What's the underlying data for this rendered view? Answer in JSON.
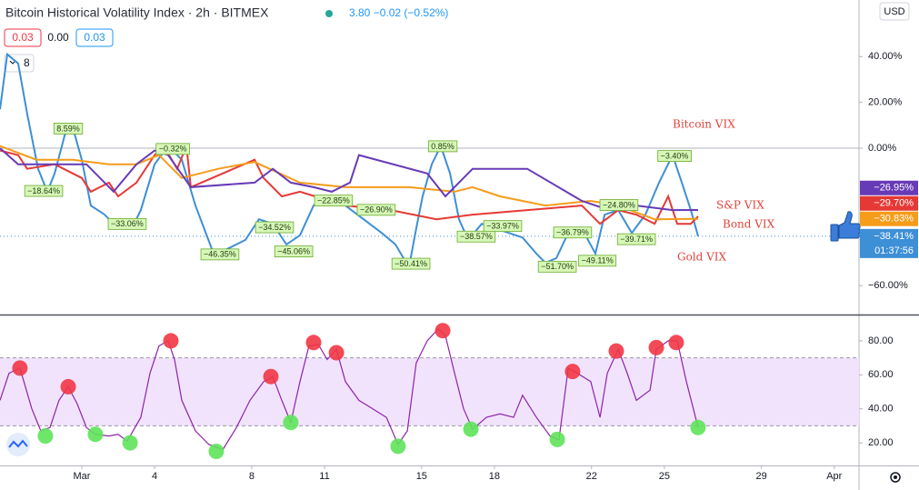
{
  "header": {
    "quote": "3.80 −0.02 (−0.52%)",
    "values": [
      "0.03",
      "0.00",
      "0.03"
    ],
    "collapsed": "8",
    "currency": "USD",
    "countdown": "01:37:56"
  },
  "chart_data": [
    {
      "type": "line",
      "title": "Bitcoin Historical Volatility Index · 2h · BITMEX",
      "xlim": [
        -3.37,
        32.02
      ],
      "ylim": [
        -72.2,
        64.7
      ],
      "baseline": 0,
      "grid": false,
      "yticks": [
        {
          "value": 40,
          "label": "40.00%"
        },
        {
          "value": 20,
          "label": "20.00%"
        },
        {
          "value": 0,
          "label": "0.00%"
        },
        {
          "value": -60,
          "label": "−60.00%"
        }
      ],
      "series": [
        {
          "name": "Bitcoin VIX",
          "color": "#3d8fd6",
          "x": [
            -3.37,
            -3.07,
            -2.62,
            -2.25,
            -1.8,
            -1.42,
            -1.12,
            -0.67,
            -0.37,
            0,
            0.37,
            0.94,
            1.5,
            2.06,
            2.43,
            3,
            3.56,
            4.12,
            4.68,
            5.43,
            5.99,
            6.74,
            7.3,
            7.87,
            8.43,
            8.99,
            9.55,
            10.11,
            10.86,
            11.61,
            12.36,
            12.92,
            13.48,
            13.78,
            14.04,
            14.42,
            14.79,
            15.17,
            15.54,
            15.92,
            16.48,
            17.04,
            17.6,
            18.16,
            18.73,
            19.1,
            19.55,
            20.04,
            20.6,
            21.16,
            21.54,
            22.1,
            22.66,
            23.22,
            23.78,
            24.34,
            24.72,
            25.09,
            25.39
          ],
          "values": [
            17,
            41,
            37,
            15,
            -9,
            -19,
            -11,
            7,
            9,
            -5,
            -25,
            -29,
            -35,
            -35,
            -27,
            -7,
            1,
            -5,
            -25,
            -46,
            -44,
            -40,
            -31,
            -33,
            -42,
            -38,
            -25,
            -21,
            -25,
            -31,
            -37,
            -42,
            -52,
            -35,
            -21,
            -7,
            1,
            -11,
            -31,
            -40,
            -33,
            -35,
            -37,
            -39,
            -46,
            -50,
            -48,
            -37,
            -35,
            -46,
            -29,
            -27,
            -37,
            -29,
            -15,
            -3,
            -15,
            -27,
            -38.41
          ],
          "last_value": {
            "value": -38.41,
            "label": "−38.41%"
          }
        },
        {
          "name": "S&P VIX",
          "color": "#e53935",
          "x": [
            -3.37,
            -2.62,
            -2.25,
            -1.12,
            0,
            0.37,
            1.12,
            1.5,
            2.25,
            3,
            3.37,
            3.93,
            4.31,
            4.49,
            7.12,
            7.49,
            8.24,
            8.99,
            10.86,
            12.73,
            14.61,
            16.1,
            18.35,
            20.6,
            21.35,
            22.1,
            22.85,
            23.6,
            24.16,
            24.53,
            25.09,
            25.39
          ],
          "values": [
            -1,
            -3,
            -9,
            -7,
            -13,
            -19,
            -15,
            -21,
            -15,
            -3,
            1,
            -9,
            1,
            -17,
            -5,
            -13,
            -21,
            -19,
            -25,
            -27,
            -31,
            -29,
            -27,
            -25,
            -33,
            -27,
            -29,
            -33,
            -21,
            -33,
            -33,
            -29.7
          ],
          "last_value": {
            "value": -29.7,
            "label": "−29.70%"
          }
        },
        {
          "name": "Bond VIX",
          "color": "#f59c1a",
          "x": [
            -3.37,
            -1.87,
            -0.37,
            1.12,
            2.25,
            3.18,
            4.12,
            5.62,
            7.12,
            8.99,
            10.86,
            13.48,
            15.36,
            16.1,
            17.23,
            19.1,
            20.97,
            22.1,
            23.6,
            25.39
          ],
          "values": [
            1,
            -5,
            -5,
            -7,
            -7,
            -3,
            -13,
            -9,
            -6,
            -15,
            -17,
            -17,
            -19,
            -17,
            -21,
            -25,
            -23,
            -25,
            -31,
            -30.83
          ],
          "last_value": {
            "value": -30.83,
            "label": "−30.83%"
          }
        },
        {
          "name": "Gold VIX",
          "color": "#673ab7",
          "x": [
            -3.37,
            -2.62,
            -1.12,
            0.19,
            1.31,
            2.25,
            3,
            3.56,
            4.49,
            7.12,
            7.87,
            8.61,
            9.55,
            10.3,
            11.05,
            11.42,
            14.23,
            14.98,
            16.1,
            18.35,
            20.6,
            21.72,
            22.85,
            24.34,
            25.39
          ],
          "values": [
            0,
            -7,
            -7,
            -7,
            -19,
            -7,
            -1,
            -3,
            -17,
            -15,
            -9,
            -15,
            -17,
            -19,
            -15,
            -3,
            -11,
            -21,
            -9,
            -9,
            -23,
            -27,
            -25,
            -27,
            -26.95
          ],
          "last_value": {
            "value": -26.95,
            "label": "−26.95%"
          }
        }
      ],
      "annotations": [
        {
          "label": "8.59%",
          "x": -0.56,
          "y": 8.59
        },
        {
          "label": "−18.64%",
          "x": -1.57,
          "y": -18.64
        },
        {
          "label": "−0.32%",
          "x": 3.75,
          "y": -0.32
        },
        {
          "label": "−33.06%",
          "x": 1.87,
          "y": -33.06
        },
        {
          "label": "−34.52%",
          "x": 7.94,
          "y": -34.52
        },
        {
          "label": "−46.35%",
          "x": 5.69,
          "y": -46.35
        },
        {
          "label": "−45.06%",
          "x": 8.73,
          "y": -45.06
        },
        {
          "label": "−22.85%",
          "x": 10.37,
          "y": -22.85
        },
        {
          "label": "−26.90%",
          "x": 12.13,
          "y": -26.9
        },
        {
          "label": "0.85%",
          "x": 14.87,
          "y": 0.85
        },
        {
          "label": "−50.41%",
          "x": 13.56,
          "y": -50.41
        },
        {
          "label": "−38.57%",
          "x": 16.25,
          "y": -38.57
        },
        {
          "label": "−33.97%",
          "x": 17.34,
          "y": -33.97
        },
        {
          "label": "−36.79%",
          "x": 20.22,
          "y": -36.79
        },
        {
          "label": "−51.70%",
          "x": 19.59,
          "y": -51.7
        },
        {
          "label": "−49.11%",
          "x": 21.24,
          "y": -49.11
        },
        {
          "label": "−24.80%",
          "x": 22.13,
          "y": -24.8
        },
        {
          "label": "−39.71%",
          "x": 22.85,
          "y": -39.71
        },
        {
          "label": "−3.40%",
          "x": 24.42,
          "y": -3.4
        }
      ]
    },
    {
      "type": "line",
      "xlim": [
        -3.37,
        32.02
      ],
      "ylim": [
        6.7,
        94.4
      ],
      "band": [
        30,
        70
      ],
      "grid": false,
      "yticks": [
        {
          "value": 80,
          "label": "80.00"
        },
        {
          "value": 60,
          "label": "60.00"
        },
        {
          "value": 40,
          "label": "40.00"
        },
        {
          "value": 20,
          "label": "20.00"
        }
      ],
      "xticks": [
        {
          "value": 0,
          "label": "Mar"
        },
        {
          "value": 3,
          "label": "4"
        },
        {
          "value": 7,
          "label": "8"
        },
        {
          "value": 10,
          "label": "11"
        },
        {
          "value": 14,
          "label": "15"
        },
        {
          "value": 17,
          "label": "18"
        },
        {
          "value": 21,
          "label": "22"
        },
        {
          "value": 24,
          "label": "25"
        },
        {
          "value": 28,
          "label": "29"
        },
        {
          "value": 31,
          "label": "Apr"
        }
      ],
      "series": [
        {
          "color": "#8e24aa",
          "x": [
            -3.37,
            -3,
            -2.55,
            -2.06,
            -1.69,
            -1.31,
            -0.94,
            -0.56,
            -0.19,
            0.19,
            0.56,
            1.12,
            1.5,
            1.87,
            2.43,
            2.81,
            3.18,
            3.56,
            3.82,
            4.12,
            4.68,
            5.24,
            5.81,
            6.37,
            6.93,
            7.49,
            7.87,
            8.24,
            8.61,
            8.99,
            9.36,
            9.74,
            10.11,
            10.49,
            10.86,
            11.42,
            11.99,
            12.55,
            13.03,
            13.41,
            13.78,
            14.23,
            14.68,
            14.98,
            15.36,
            15.73,
            16.1,
            16.67,
            17.23,
            17.79,
            18.16,
            18.73,
            19.29,
            19.66,
            20.04,
            20.41,
            20.97,
            21.35,
            21.65,
            22.1,
            22.47,
            22.85,
            23.41,
            23.67,
            24.16,
            24.53,
            24.91,
            25.39
          ],
          "values": [
            45,
            61,
            64,
            40,
            27,
            29,
            45,
            53,
            43,
            29,
            25,
            24,
            25,
            21,
            35,
            61,
            77,
            80,
            69,
            45,
            27,
            19,
            16,
            29,
            45,
            56,
            59,
            45,
            32,
            56,
            77,
            78,
            69,
            75,
            56,
            45,
            40,
            35,
            19,
            27,
            67,
            80,
            87,
            83,
            61,
            40,
            28,
            35,
            37,
            35,
            48,
            35,
            24,
            22,
            64,
            61,
            56,
            35,
            61,
            75,
            61,
            45,
            51,
            75,
            80,
            80,
            56,
            29
          ]
        }
      ],
      "markers": [
        {
          "color": "#f23645",
          "x": [
            -2.55,
            -0.56,
            3.67,
            7.79,
            9.55,
            10.49,
            14.87,
            20.22,
            22.02,
            23.67,
            24.49
          ],
          "values": [
            64,
            53,
            80,
            59,
            79,
            73,
            86,
            62,
            74,
            76,
            79
          ]
        },
        {
          "color": "#5ee35a",
          "x": [
            -1.5,
            0.56,
            1.99,
            5.54,
            8.61,
            13.03,
            16.03,
            19.59,
            25.39
          ],
          "values": [
            24,
            25,
            20,
            15,
            32,
            18,
            28,
            22,
            29
          ]
        }
      ]
    }
  ]
}
